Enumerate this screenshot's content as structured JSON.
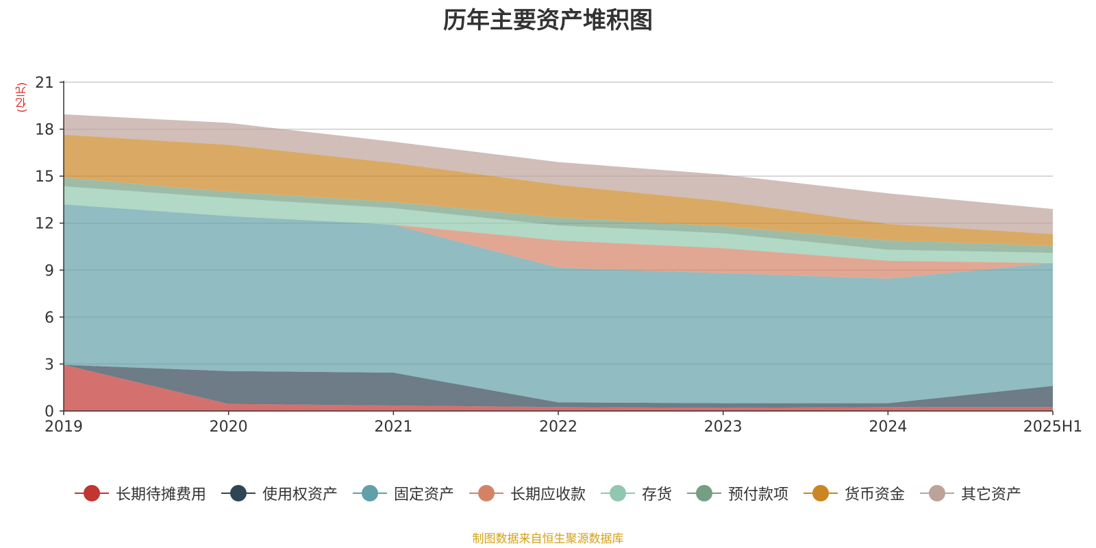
{
  "chart_data": {
    "type": "area",
    "stacked": true,
    "title": "历年主要资产堆积图",
    "unit_label": "(亿元)",
    "x": [
      "2019",
      "2020",
      "2021",
      "2022",
      "2023",
      "2024",
      "2025H1"
    ],
    "ylim": [
      0,
      21
    ],
    "yticks": [
      0,
      3,
      6,
      9,
      12,
      15,
      18,
      21
    ],
    "grid": true,
    "legend_position": "bottom",
    "series": [
      {
        "name": "长期待摊费用",
        "color": "#c23531",
        "values": [
          2.95,
          0.45,
          0.35,
          0.25,
          0.2,
          0.25,
          0.25
        ]
      },
      {
        "name": "使用权资产",
        "color": "#2f4554",
        "values": [
          0.0,
          2.1,
          2.1,
          0.3,
          0.3,
          0.25,
          1.35
        ]
      },
      {
        "name": "固定资产",
        "color": "#61a0a8",
        "values": [
          10.25,
          9.9,
          9.45,
          8.6,
          8.3,
          7.95,
          7.85
        ]
      },
      {
        "name": "长期应收款",
        "color": "#d48265",
        "values": [
          0.0,
          0.0,
          0.0,
          1.75,
          1.6,
          1.15,
          0.0
        ]
      },
      {
        "name": "存货",
        "color": "#91c7ae",
        "values": [
          1.15,
          1.15,
          1.05,
          0.95,
          0.95,
          0.7,
          0.65
        ]
      },
      {
        "name": "预付款项",
        "color": "#749f83",
        "values": [
          0.55,
          0.4,
          0.4,
          0.5,
          0.45,
          0.6,
          0.45
        ]
      },
      {
        "name": "货币资金",
        "color": "#ca8622",
        "values": [
          2.75,
          3.0,
          2.5,
          2.1,
          1.6,
          1.05,
          0.75
        ]
      },
      {
        "name": "其它资产",
        "color": "#bda29a",
        "values": [
          1.3,
          1.4,
          1.35,
          1.45,
          1.7,
          1.95,
          1.6
        ]
      }
    ]
  },
  "footer_text": "制图数据来自恒生聚源数据库"
}
